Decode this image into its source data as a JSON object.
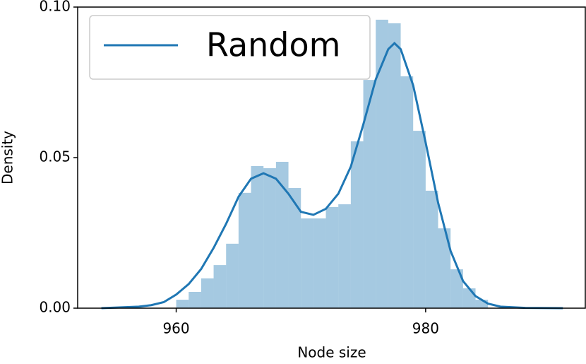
{
  "chart_data": {
    "type": "histogram",
    "xlabel": "Node size",
    "ylabel": "Density",
    "bins": [
      960,
      961,
      962,
      963,
      964,
      965,
      966,
      967,
      968,
      969,
      970,
      971,
      972,
      973,
      974,
      975,
      976,
      977,
      978,
      979,
      980,
      981,
      982,
      983,
      984,
      985
    ],
    "values": [
      0.0028,
      0.0054,
      0.0099,
      0.0143,
      0.0214,
      0.0383,
      0.0472,
      0.0465,
      0.0486,
      0.0399,
      0.0298,
      0.0298,
      0.0336,
      0.0345,
      0.0554,
      0.0758,
      0.0958,
      0.0946,
      0.077,
      0.0589,
      0.039,
      0.0265,
      0.0129,
      0.0066,
      0.0028
    ],
    "color": "#1f77b4",
    "series": [
      {
        "name": "Random",
        "color": "#1f77b4",
        "x": [
          954,
          957,
          958,
          959,
          960,
          961,
          962,
          963,
          964,
          965,
          966,
          967,
          968,
          969,
          970,
          971,
          972,
          973,
          974,
          975,
          976,
          977,
          977.5,
          978,
          979,
          980,
          981,
          982,
          983,
          984,
          985,
          986,
          988,
          991
        ],
        "values": [
          0,
          0.0005,
          0.001,
          0.002,
          0.0045,
          0.008,
          0.013,
          0.02,
          0.028,
          0.037,
          0.043,
          0.0448,
          0.043,
          0.038,
          0.032,
          0.031,
          0.033,
          0.038,
          0.047,
          0.061,
          0.076,
          0.086,
          0.088,
          0.086,
          0.074,
          0.055,
          0.035,
          0.019,
          0.009,
          0.004,
          0.0015,
          0.0005,
          0.0001,
          0
        ]
      }
    ],
    "xlim": [
      952.1,
      992.8
    ],
    "ylim": [
      0,
      0.1
    ],
    "xticks": [
      960,
      980
    ],
    "yticks": [
      {
        "value": 0,
        "label": "0.00"
      },
      {
        "value": 0.05,
        "label": "0.05"
      },
      {
        "value": 0.1,
        "label": "0.10"
      }
    ],
    "legend": "upper left"
  }
}
